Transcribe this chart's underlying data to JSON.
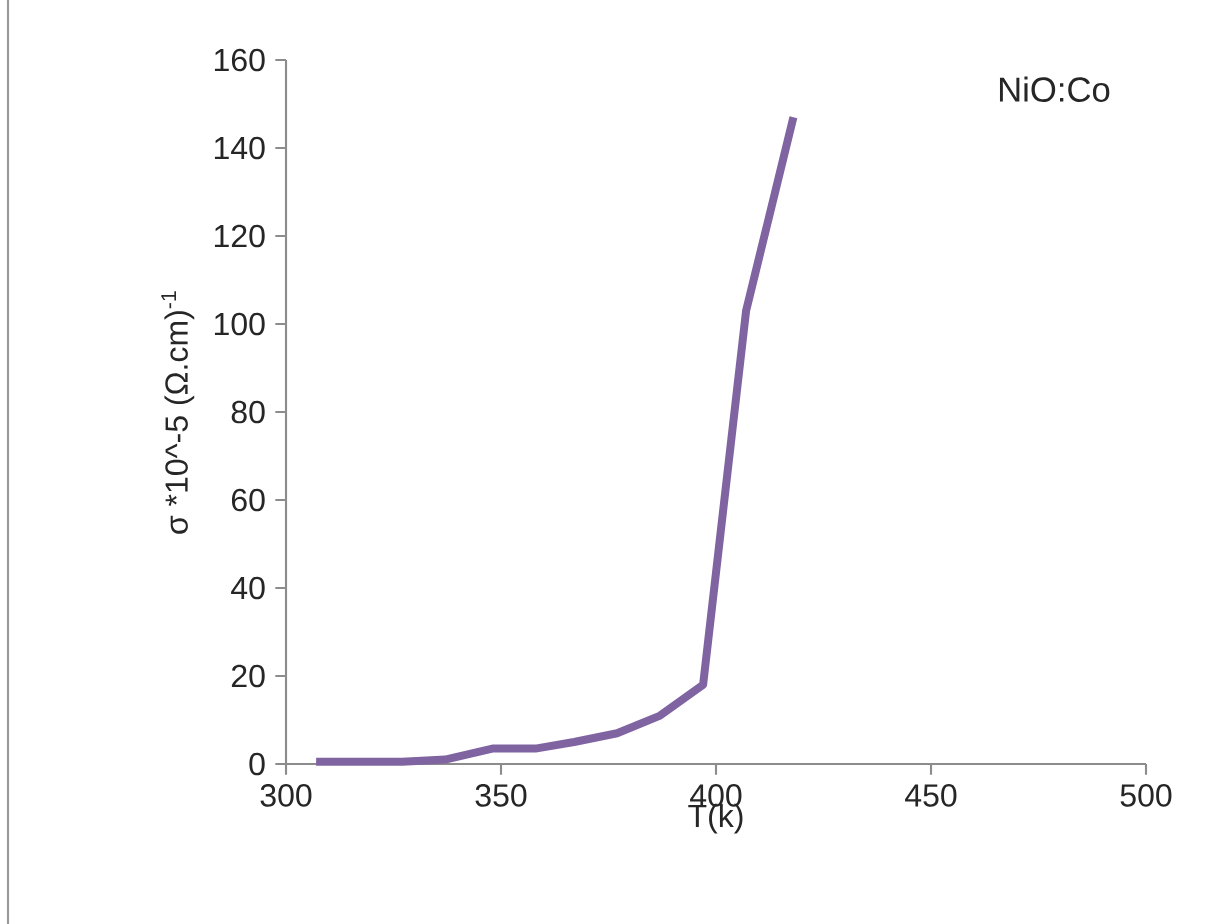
{
  "chart_data": {
    "type": "line",
    "xlabel": "T(k)",
    "ylabel": "σ *10^-5 (Ω.cm)$^{-1}$",
    "annotations": [
      "NiO:Co"
    ],
    "x": [
      307,
      317,
      327,
      337,
      348,
      358,
      367,
      377,
      387,
      397,
      407,
      418
    ],
    "series": [
      {
        "color": "#8064a2",
        "values": [
          0.5,
          0.5,
          0.5,
          1,
          3.5,
          3.5,
          5,
          7,
          11,
          18,
          103,
          147
        ]
      }
    ],
    "xlim": [
      300,
      500
    ],
    "ylim": [
      0,
      160
    ],
    "xticks": [
      300,
      350,
      400,
      450,
      500
    ],
    "yticks": [
      0,
      20,
      40,
      60,
      80,
      100,
      120,
      140,
      160
    ],
    "grid": false,
    "marker": "none",
    "line_style": "solid"
  }
}
